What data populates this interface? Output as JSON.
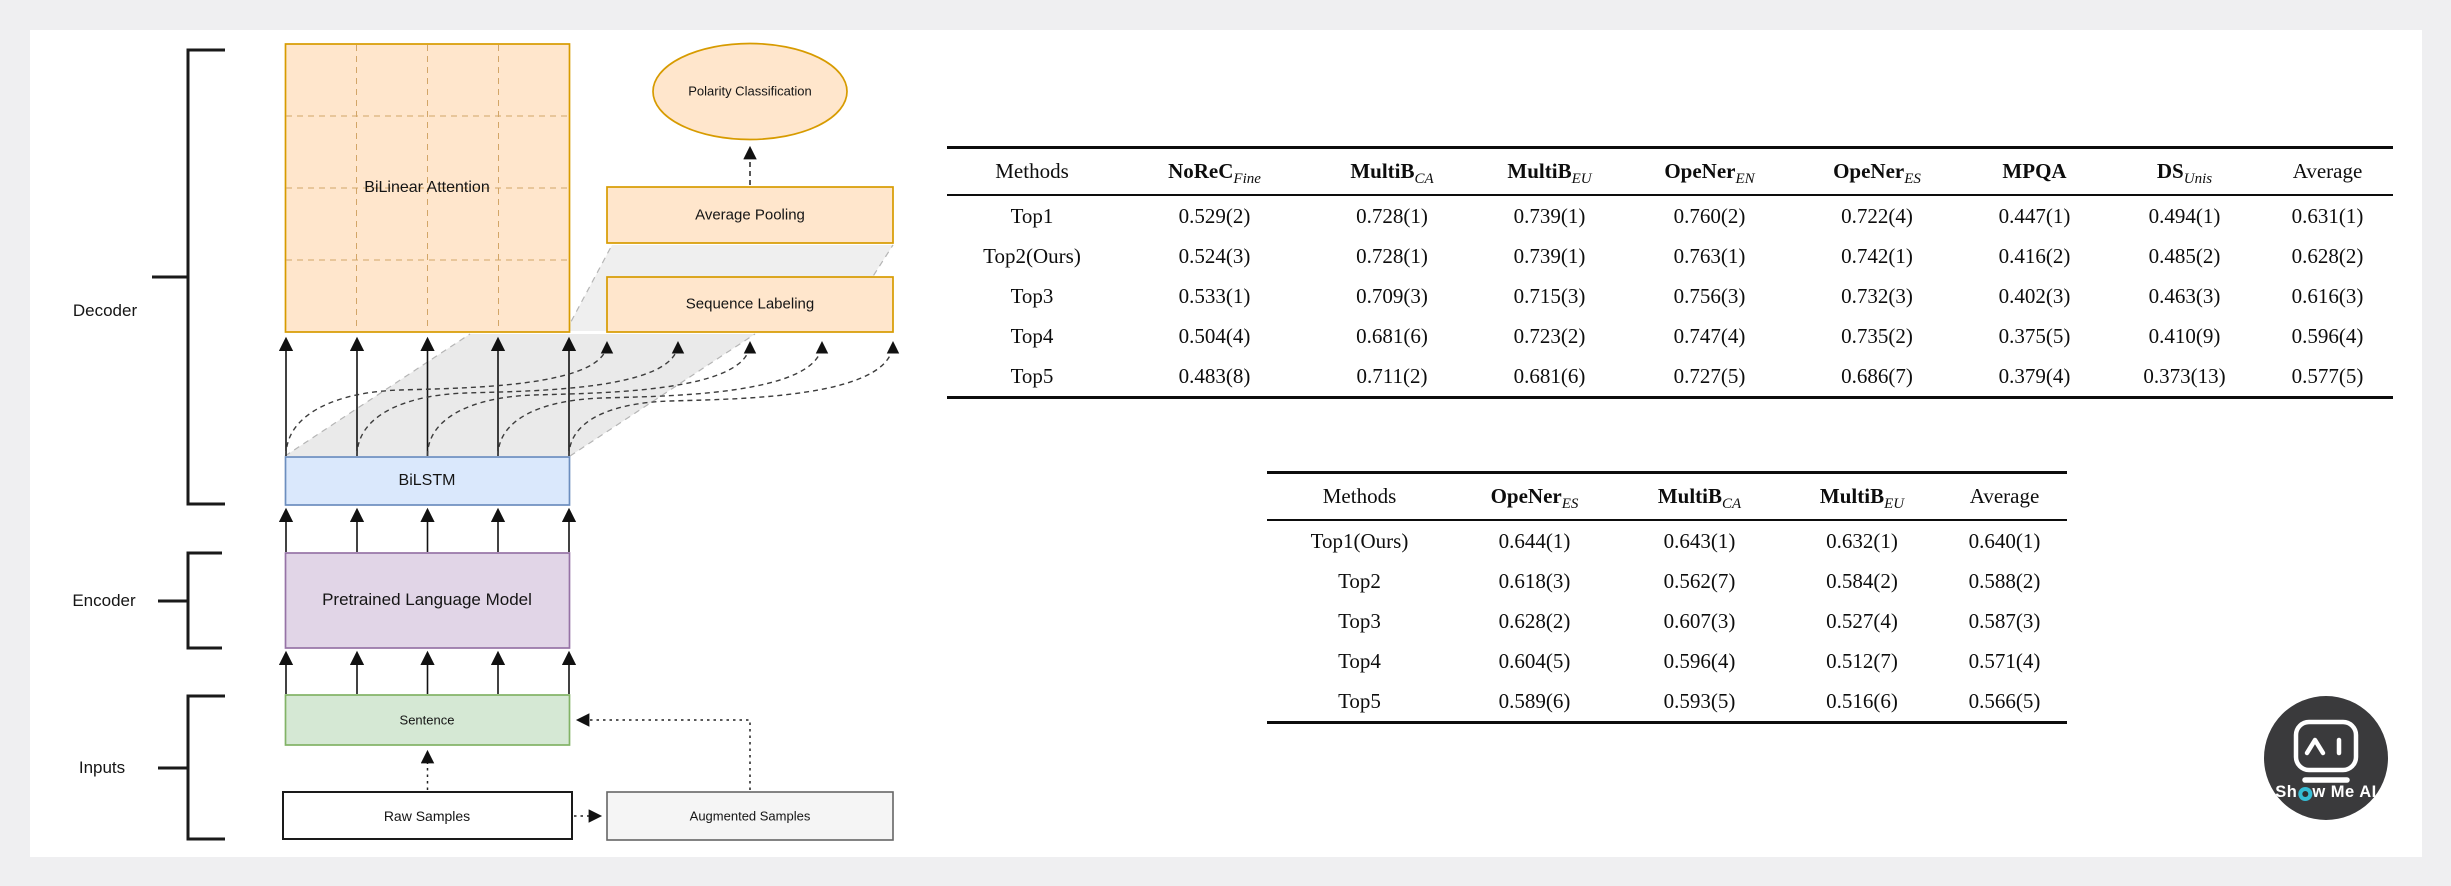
{
  "diagram": {
    "section_labels": {
      "decoder": "Decoder",
      "encoder": "Encoder",
      "inputs": "Inputs"
    },
    "nodes": {
      "bilinear_attention": "BiLinear Attention",
      "polarity_classification": "Polarity Classification",
      "average_pooling": "Average Pooling",
      "sequence_labeling": "Sequence Labeling",
      "bilstm": "BiLSTM",
      "pretrained_language_model": "Pretrained Language Model",
      "sentence": "Sentence",
      "raw_samples": "Raw Samples",
      "augmented_samples": "Augmented Samples"
    },
    "colors": {
      "attention_fill": "#FFE6CC",
      "attention_stroke": "#D79B00",
      "bilstm_fill": "#DAE8FC",
      "bilstm_stroke": "#6C8EBF",
      "plm_fill": "#E1D5E7",
      "plm_stroke": "#9673A6",
      "sentence_fill": "#D5E8D4",
      "sentence_stroke": "#82B366",
      "augmented_fill": "#F5F5F5",
      "augmented_stroke": "#666666"
    }
  },
  "tables": [
    {
      "headers": [
        {
          "t": "Methods"
        },
        {
          "t": "NoReC",
          "s": "Fine",
          "b": true
        },
        {
          "t": "MultiB",
          "s": "CA",
          "b": true
        },
        {
          "t": "MultiB",
          "s": "EU",
          "b": true
        },
        {
          "t": "OpeNer",
          "s": "EN",
          "b": true
        },
        {
          "t": "OpeNer",
          "s": "ES",
          "b": true
        },
        {
          "t": "MPQA",
          "b": true
        },
        {
          "t": "DS",
          "s": "Unis",
          "b": true
        },
        {
          "t": "Average"
        }
      ],
      "rows": [
        [
          "Top1",
          "0.529(2)",
          "0.728(1)",
          "0.739(1)",
          "0.760(2)",
          "0.722(4)",
          "0.447(1)",
          "0.494(1)",
          "0.631(1)"
        ],
        [
          "Top2(Ours)",
          "0.524(3)",
          "0.728(1)",
          "0.739(1)",
          "0.763(1)",
          "0.742(1)",
          "0.416(2)",
          "0.485(2)",
          "0.628(2)"
        ],
        [
          "Top3",
          "0.533(1)",
          "0.709(3)",
          "0.715(3)",
          "0.756(3)",
          "0.732(3)",
          "0.402(3)",
          "0.463(3)",
          "0.616(3)"
        ],
        [
          "Top4",
          "0.504(4)",
          "0.681(6)",
          "0.723(2)",
          "0.747(4)",
          "0.735(2)",
          "0.375(5)",
          "0.410(9)",
          "0.596(4)"
        ],
        [
          "Top5",
          "0.483(8)",
          "0.711(2)",
          "0.681(6)",
          "0.727(5)",
          "0.686(7)",
          "0.379(4)",
          "0.373(13)",
          "0.577(5)"
        ]
      ]
    },
    {
      "headers": [
        {
          "t": "Methods"
        },
        {
          "t": "OpeNer",
          "s": "ES",
          "b": true
        },
        {
          "t": "MultiB",
          "s": "CA",
          "b": true
        },
        {
          "t": "MultiB",
          "s": "EU",
          "b": true
        },
        {
          "t": "Average"
        }
      ],
      "rows": [
        [
          "Top1(Ours)",
          "0.644(1)",
          "0.643(1)",
          "0.632(1)",
          "0.640(1)"
        ],
        [
          "Top2",
          "0.618(3)",
          "0.562(7)",
          "0.584(2)",
          "0.588(2)"
        ],
        [
          "Top3",
          "0.628(2)",
          "0.607(3)",
          "0.527(4)",
          "0.587(3)"
        ],
        [
          "Top4",
          "0.604(5)",
          "0.596(4)",
          "0.512(7)",
          "0.571(4)"
        ],
        [
          "Top5",
          "0.589(6)",
          "0.593(5)",
          "0.516(6)",
          "0.566(5)"
        ]
      ]
    }
  ],
  "logo": {
    "text": "Show Me AI",
    "pre": "Sh",
    "post": "w Me AI",
    "accent": "#35bcd4"
  }
}
